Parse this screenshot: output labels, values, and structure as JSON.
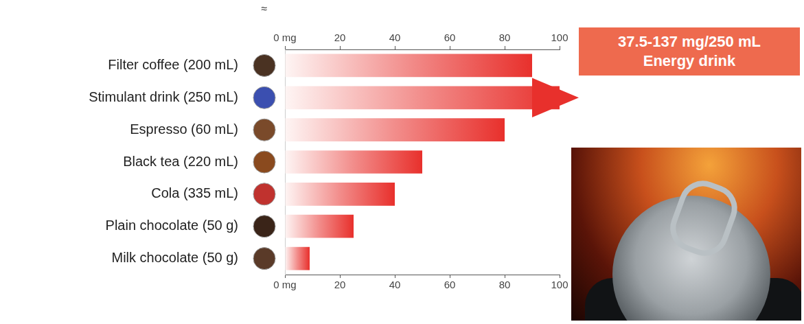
{
  "chart_data": {
    "type": "bar",
    "orientation": "horizontal",
    "categories": [
      "Filter coffee (200 mL)",
      "Stimulant drink (250 mL)",
      "Espresso (60 mL)",
      "Black tea (220 mL)",
      "Cola (335 mL)",
      "Plain chocolate (50 g)",
      "Milk chocolate (50 g)"
    ],
    "values": [
      90,
      100,
      80,
      50,
      40,
      25,
      9
    ],
    "color": "#e8302c",
    "xlim": [
      0,
      100
    ],
    "xticks": [
      {
        "value": 0,
        "label": "0 mg"
      },
      20,
      40,
      60,
      80,
      100
    ],
    "grid": false,
    "data_labels": false,
    "approx_symbol": "≈",
    "annotation": [
      "37.5-137 mg/250 mL",
      "Energy drink"
    ]
  }
}
